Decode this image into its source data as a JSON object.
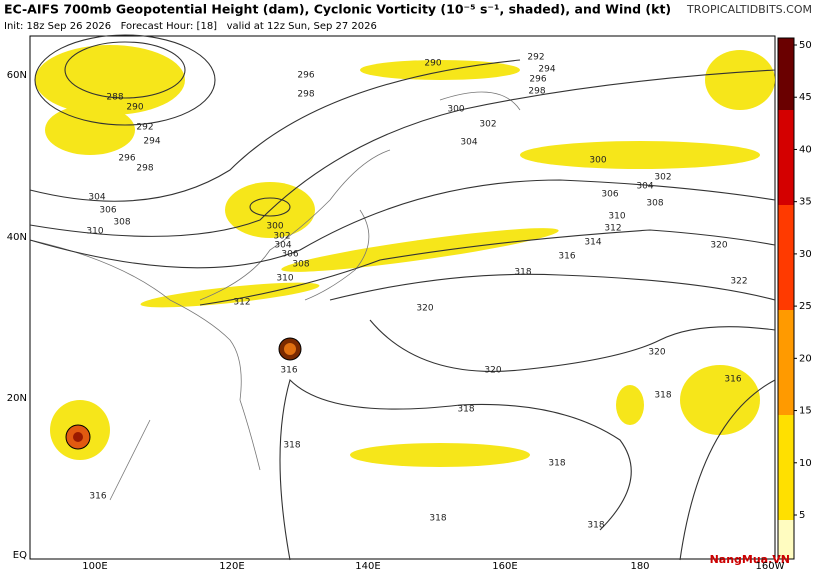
{
  "header": {
    "title": "EC-AIFS 700mb Geopotential Height (dam), Cyclonic Vorticity (10⁻⁵ s⁻¹, shaded), and Wind (kt)",
    "site": "TROPICALTIDBITS.COM",
    "subtitle": "Init: 18z Sep 26 2026   Forecast Hour: [18]   valid at 12z Sun, Sep 27 2026"
  },
  "lat_labels": [
    "60N",
    "40N",
    "20N",
    "EQ"
  ],
  "lon_labels": [
    "100E",
    "120E",
    "140E",
    "160E",
    "180",
    "160W"
  ],
  "colorbar": {
    "ticks": [
      5,
      10,
      15,
      20,
      25,
      30,
      35,
      40,
      45,
      50
    ]
  },
  "contour_labels": [
    288,
    290,
    292,
    294,
    296,
    298,
    304,
    306,
    308,
    310,
    296,
    298,
    290,
    292,
    294,
    296,
    298,
    300,
    302,
    304,
    300,
    302,
    304,
    306,
    308,
    310,
    312,
    314,
    316,
    318,
    320,
    322,
    300,
    302,
    304,
    306,
    308,
    310,
    312,
    320,
    320,
    320,
    318,
    316,
    316,
    318,
    318,
    318,
    316,
    318,
    318
  ],
  "watermark": "NangMua.VN"
}
